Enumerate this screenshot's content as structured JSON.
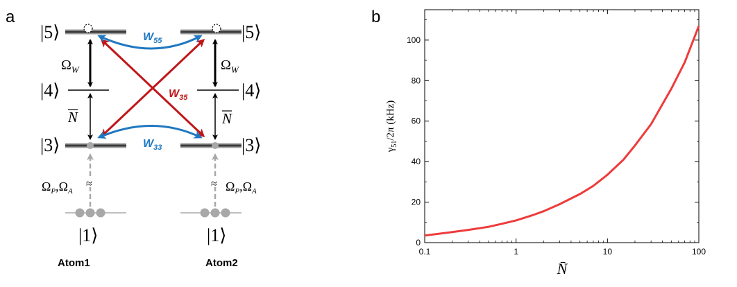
{
  "panel_a": {
    "label": "a",
    "levels": {
      "l5": "|5⟩",
      "l4": "|4⟩",
      "l3": "|3⟩",
      "l1": "|1⟩"
    },
    "omega_w": "Ω",
    "omega_w_sub": "W",
    "n_bar": "N",
    "omega_pa": "Ω",
    "omega_p_sub": "P",
    "omega_a_sub": "A",
    "approx": "≈",
    "w55": "W",
    "w55_sub": "55",
    "w35": "W",
    "w35_sub": "35",
    "w33": "W",
    "w33_sub": "33",
    "atom1": "Atom1",
    "atom2": "Atom2",
    "colors": {
      "blue": "#1f78c1",
      "red": "#c0161a",
      "gray": "#a8a8a8"
    }
  },
  "panel_b": {
    "label": "b"
  },
  "chart_data": {
    "type": "line",
    "title": "",
    "xlabel": "N̄",
    "ylabel_main": "γ",
    "ylabel_sub": "51",
    "ylabel_rest": "/2π (kHz)",
    "xscale": "log",
    "xlim": [
      0.1,
      100
    ],
    "ylim": [
      0,
      115
    ],
    "xticks": [
      0.1,
      1,
      10,
      100
    ],
    "xtick_labels": [
      "0.1",
      "1",
      "10",
      "100"
    ],
    "yticks": [
      0,
      20,
      40,
      60,
      80,
      100
    ],
    "ytick_labels": [
      "0",
      "20",
      "40",
      "60",
      "80",
      "100"
    ],
    "color": "#ee3b3b",
    "series": [
      {
        "name": "gamma51",
        "x": [
          0.1,
          0.2,
          0.3,
          0.5,
          0.7,
          1,
          1.5,
          2,
          3,
          5,
          7,
          10,
          15,
          20,
          30,
          50,
          70,
          100
        ],
        "y": [
          3.5,
          5.2,
          6.3,
          7.8,
          9.3,
          11,
          13.5,
          15.5,
          19,
          24,
          28,
          33.5,
          41,
          48,
          58.5,
          76,
          89,
          107
        ]
      }
    ]
  }
}
